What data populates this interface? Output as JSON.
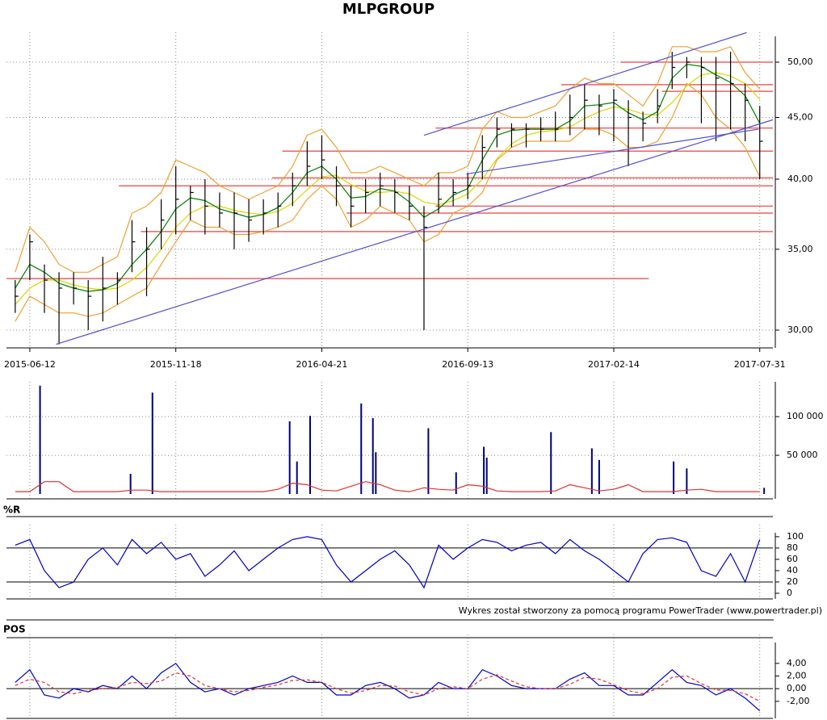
{
  "chart_data": [
    {
      "type": "candlestick",
      "title": "MLPGROUP",
      "log": true,
      "ylim": [
        29,
        54
      ],
      "yticks": [
        {
          "value": 30,
          "label": "30,00"
        },
        {
          "value": 35,
          "label": "35,00"
        },
        {
          "value": 40,
          "label": "40,00"
        },
        {
          "value": 45,
          "label": "45,00"
        },
        {
          "value": 50,
          "label": "50,00"
        }
      ],
      "xlim": [
        -16,
        509
      ],
      "xticks": [
        {
          "value": 0,
          "label": "2015-06-12"
        },
        {
          "value": 100,
          "label": "2015-11-18"
        },
        {
          "value": 200,
          "label": "2016-04-21"
        },
        {
          "value": 300,
          "label": "2016-09-13"
        },
        {
          "value": 400,
          "label": "2017-02-14"
        },
        {
          "value": 500,
          "label": "2017-07-31"
        }
      ],
      "grid": true,
      "color": "#000000",
      "x": [
        -10,
        0,
        10,
        20,
        30,
        40,
        50,
        60,
        70,
        80,
        90,
        100,
        110,
        120,
        130,
        140,
        150,
        160,
        170,
        180,
        190,
        200,
        210,
        220,
        230,
        240,
        250,
        260,
        270,
        280,
        290,
        300,
        310,
        320,
        330,
        340,
        350,
        360,
        370,
        380,
        390,
        400,
        410,
        420,
        430,
        440,
        450,
        460,
        470,
        480,
        490,
        500
      ],
      "high": [
        33,
        36,
        34,
        33.5,
        33.5,
        33,
        34.5,
        33.5,
        37,
        36.5,
        38.5,
        41,
        39.5,
        40,
        39,
        39,
        38.5,
        38.5,
        39,
        40.5,
        43,
        43.5,
        41,
        39.5,
        40,
        40.5,
        40,
        39.5,
        38,
        40.5,
        40,
        40.5,
        43.5,
        45,
        44.5,
        44.5,
        45,
        45.5,
        47,
        48,
        47,
        47.5,
        46.5,
        45.5,
        47.5,
        51,
        50.5,
        50.5,
        50.5,
        51,
        48,
        46
      ],
      "low": [
        31,
        33,
        31,
        29.2,
        31.5,
        30,
        30.5,
        31.5,
        33.5,
        32,
        35,
        36,
        37,
        36,
        36.5,
        35,
        35.5,
        36,
        36.5,
        38,
        39.5,
        40,
        38,
        36.5,
        37.5,
        38,
        37.5,
        37,
        30,
        37.5,
        38,
        38.5,
        40,
        42.5,
        42.5,
        42.5,
        43,
        43,
        43.5,
        44,
        43.5,
        43,
        41,
        43,
        44.5,
        47.5,
        48.5,
        44.5,
        43,
        44,
        43,
        40
      ],
      "close": [
        32,
        35.5,
        33,
        32.5,
        32.5,
        32,
        32.5,
        33,
        35.5,
        35,
        37,
        38.5,
        39,
        38,
        37.5,
        37.5,
        37,
        37.5,
        38,
        39.5,
        41,
        41.5,
        39.5,
        38,
        39,
        39.5,
        39,
        38,
        36.5,
        38.5,
        39,
        39.5,
        42.5,
        44,
        44,
        44,
        44,
        44,
        45,
        46.5,
        46,
        46.5,
        45,
        44.5,
        46,
        49.5,
        50,
        49.5,
        48.5,
        48,
        46.5,
        43
      ],
      "lines": [
        {
          "color": "#f0a030",
          "values": [
            33.5,
            36.5,
            35.5,
            34,
            33.5,
            33.5,
            34,
            34.5,
            37.5,
            38,
            39,
            41.5,
            41,
            40.5,
            39.5,
            39,
            38.5,
            39,
            39.5,
            41,
            43.5,
            44,
            42.5,
            40.5,
            40.5,
            41,
            40.5,
            40,
            39.5,
            40.5,
            40.5,
            41,
            44,
            45.5,
            45,
            45,
            45.5,
            46,
            47.5,
            48.5,
            48,
            48,
            47,
            46,
            48,
            51.5,
            51.5,
            51,
            51,
            51.5,
            49,
            47.5
          ]
        },
        {
          "color": "#f0a030",
          "values": [
            30.5,
            32,
            31.5,
            31,
            31,
            30.8,
            31,
            31.5,
            32,
            32.5,
            34,
            35.5,
            37,
            36.5,
            36.5,
            36,
            36,
            36.2,
            36.5,
            37,
            38.5,
            39.5,
            38.5,
            36.5,
            37,
            38,
            37.5,
            37,
            35.5,
            36,
            37.5,
            38,
            39,
            41.5,
            42.5,
            43,
            43,
            43,
            43,
            44,
            44,
            43.5,
            42.5,
            42.5,
            43,
            45,
            48,
            47,
            45,
            44,
            42.5,
            40.2
          ]
        },
        {
          "color": "#d8d800",
          "values": [
            31.5,
            32.5,
            33,
            33,
            32.7,
            32.5,
            32.4,
            32.5,
            33,
            33.8,
            35,
            36.5,
            37.5,
            38,
            38,
            37.7,
            37.5,
            37.4,
            37.6,
            38.2,
            39.2,
            40.2,
            40.3,
            39.6,
            39.1,
            39,
            39.1,
            38.9,
            38.3,
            38.1,
            38.4,
            38.9,
            40,
            41.6,
            42.8,
            43.5,
            43.8,
            43.9,
            44.2,
            44.9,
            45.5,
            45.9,
            45.7,
            45.3,
            45.2,
            46.3,
            47.8,
            48.8,
            49,
            48.7,
            48,
            46.6
          ]
        },
        {
          "color": "#008000",
          "values": [
            32.5,
            34,
            33.5,
            32.8,
            32.5,
            32.3,
            32.4,
            32.8,
            34,
            35,
            36.2,
            37.8,
            38.6,
            38.4,
            37.8,
            37.5,
            37.2,
            37.4,
            37.9,
            39,
            40.5,
            41,
            40,
            38.6,
            38.7,
            39.3,
            39.1,
            38.3,
            37.2,
            37.8,
            38.8,
            39.3,
            41.5,
            43.5,
            43.9,
            44,
            44,
            44,
            44.7,
            46,
            46.1,
            46.3,
            45.4,
            44.8,
            45.5,
            48.5,
            49.8,
            49.6,
            48.8,
            48.1,
            46.9,
            44.5
          ]
        }
      ],
      "level_color": "#f06060",
      "levels": [
        {
          "value": 33.1,
          "from": -16,
          "to": 424
        },
        {
          "value": 36.2,
          "from": 76,
          "to": 509
        },
        {
          "value": 37.5,
          "from": 217,
          "to": 509
        },
        {
          "value": 38,
          "from": 278,
          "to": 509
        },
        {
          "value": 39.5,
          "from": 61,
          "to": 509
        },
        {
          "value": 40.1,
          "from": 166,
          "to": 509
        },
        {
          "value": 42.2,
          "from": 173,
          "to": 509
        },
        {
          "value": 44.1,
          "from": 278,
          "to": 509
        },
        {
          "value": 47.3,
          "from": 433,
          "to": 509
        },
        {
          "value": 47.9,
          "from": 364,
          "to": 509
        },
        {
          "value": 50,
          "from": 405,
          "to": 509
        }
      ],
      "trend_color": "#5050d0",
      "trendlines": [
        {
          "x": [
            18,
            509
          ],
          "y": [
            29.2,
            44.8
          ]
        },
        {
          "x": [
            270,
            491
          ],
          "y": [
            43.5,
            52.9
          ]
        },
        {
          "x": [
            299,
            499
          ],
          "y": [
            40.4,
            44
          ]
        }
      ]
    },
    {
      "type": "bar",
      "ylim": [
        0,
        145000
      ],
      "grid": true,
      "yticks": [
        {
          "value": 50000,
          "label": "50 000"
        },
        {
          "value": 100000,
          "label": "100 000"
        }
      ],
      "bars": {
        "color": "#000080",
        "x": [
          7,
          69,
          84,
          178,
          183,
          192,
          227,
          235,
          237,
          273,
          292,
          311,
          313,
          357,
          385,
          390,
          441,
          450,
          503
        ],
        "values": [
          140000,
          26000,
          131000,
          94000,
          42000,
          101000,
          117000,
          98000,
          54000,
          85000,
          28000,
          61000,
          47000,
          80000,
          59000,
          44000,
          42000,
          33000,
          8000
        ]
      },
      "x": [
        -10,
        0,
        10,
        20,
        30,
        40,
        50,
        60,
        70,
        80,
        90,
        100,
        110,
        120,
        130,
        140,
        150,
        160,
        170,
        180,
        190,
        200,
        210,
        220,
        230,
        240,
        250,
        260,
        270,
        280,
        290,
        300,
        310,
        320,
        330,
        340,
        350,
        360,
        370,
        380,
        390,
        400,
        410,
        420,
        430,
        440,
        450,
        460,
        470,
        480,
        490,
        500
      ],
      "lines": [
        {
          "color": "#e03030",
          "values": [
            3000,
            3000,
            16000,
            16000,
            3000,
            3000,
            3000,
            3000,
            5000,
            5000,
            3000,
            3000,
            3000,
            3000,
            3000,
            3000,
            3000,
            3000,
            6000,
            14000,
            12000,
            5000,
            4000,
            10000,
            16000,
            12000,
            5000,
            3000,
            8000,
            6000,
            5000,
            12000,
            10000,
            4000,
            3000,
            3000,
            3000,
            4000,
            12000,
            8000,
            4000,
            6000,
            12000,
            3000,
            3000,
            3000,
            5000,
            6000,
            3000,
            3000,
            3000,
            3000
          ]
        }
      ]
    },
    {
      "type": "line",
      "title": "%R",
      "ylim": [
        -10,
        107
      ],
      "yticks": [
        0,
        20,
        40,
        60,
        80,
        100
      ],
      "levels": [
        20,
        80
      ],
      "level_color": "#000000",
      "x": [
        -10,
        0,
        10,
        20,
        30,
        40,
        50,
        60,
        70,
        80,
        90,
        100,
        110,
        120,
        130,
        140,
        150,
        160,
        170,
        180,
        190,
        200,
        210,
        220,
        230,
        240,
        250,
        260,
        270,
        280,
        290,
        300,
        310,
        320,
        330,
        340,
        350,
        360,
        370,
        380,
        390,
        400,
        410,
        420,
        430,
        440,
        450,
        460,
        470,
        480,
        490,
        500
      ],
      "series": [
        {
          "color": "#0000c0",
          "values": [
            85,
            95,
            40,
            10,
            20,
            60,
            80,
            50,
            95,
            70,
            90,
            60,
            70,
            30,
            50,
            75,
            40,
            60,
            80,
            95,
            100,
            95,
            50,
            20,
            40,
            60,
            75,
            50,
            10,
            85,
            60,
            80,
            95,
            90,
            75,
            85,
            90,
            70,
            95,
            75,
            60,
            40,
            20,
            70,
            95,
            98,
            90,
            40,
            30,
            70,
            20,
            95
          ]
        }
      ],
      "note": "Wykres został stworzony za pomocą programu PowerTrader (www.powertrader.pl)"
    },
    {
      "type": "line",
      "title": "POS",
      "ylim": [
        -4.7,
        7.3
      ],
      "yticks": [
        {
          "value": -2,
          "label": "-2,00"
        },
        {
          "value": 0,
          "label": "0,00"
        },
        {
          "value": 2,
          "label": "2,00"
        },
        {
          "value": 4,
          "label": "4,00"
        }
      ],
      "levels": [
        0
      ],
      "level_color": "#000000",
      "x": [
        -10,
        0,
        10,
        20,
        30,
        40,
        50,
        60,
        70,
        80,
        90,
        100,
        110,
        120,
        130,
        140,
        150,
        160,
        170,
        180,
        190,
        200,
        210,
        220,
        230,
        240,
        250,
        260,
        270,
        280,
        290,
        300,
        310,
        320,
        330,
        340,
        350,
        360,
        370,
        380,
        390,
        400,
        410,
        420,
        430,
        440,
        450,
        460,
        470,
        480,
        490,
        500
      ],
      "series": [
        {
          "color": "#0000c0",
          "values": [
            1,
            3,
            -1,
            -1.5,
            0,
            -0.5,
            0.5,
            0,
            2,
            0,
            2.5,
            4,
            1,
            -0.5,
            0,
            -1,
            0,
            0.5,
            1,
            2,
            1,
            1,
            -1,
            -1,
            0.5,
            1,
            0,
            -1.5,
            -1,
            1,
            0,
            0,
            3,
            2,
            0.5,
            0,
            0,
            0,
            1.5,
            2.5,
            0.5,
            0.5,
            -1,
            -1,
            1,
            3,
            1,
            0.5,
            -1,
            0,
            -1.5,
            -3.5
          ]
        },
        {
          "color": "#e03030",
          "dashed": true,
          "values": [
            0.5,
            1.5,
            1,
            -0.5,
            -0.8,
            -0.3,
            0,
            0.2,
            1,
            0.8,
            1.2,
            2.5,
            2,
            0.5,
            0,
            -0.5,
            -0.3,
            0.2,
            0.6,
            1.3,
            1.4,
            1,
            0,
            -0.7,
            -0.3,
            0.5,
            0.4,
            -0.5,
            -1,
            0,
            0.3,
            0,
            1.5,
            2.2,
            1.2,
            0.3,
            0,
            0,
            0.7,
            1.8,
            1.5,
            0.6,
            -0.3,
            -0.8,
            0,
            1.8,
            2,
            0.8,
            -0.2,
            -0.3,
            -0.8,
            -2
          ]
        }
      ]
    }
  ]
}
